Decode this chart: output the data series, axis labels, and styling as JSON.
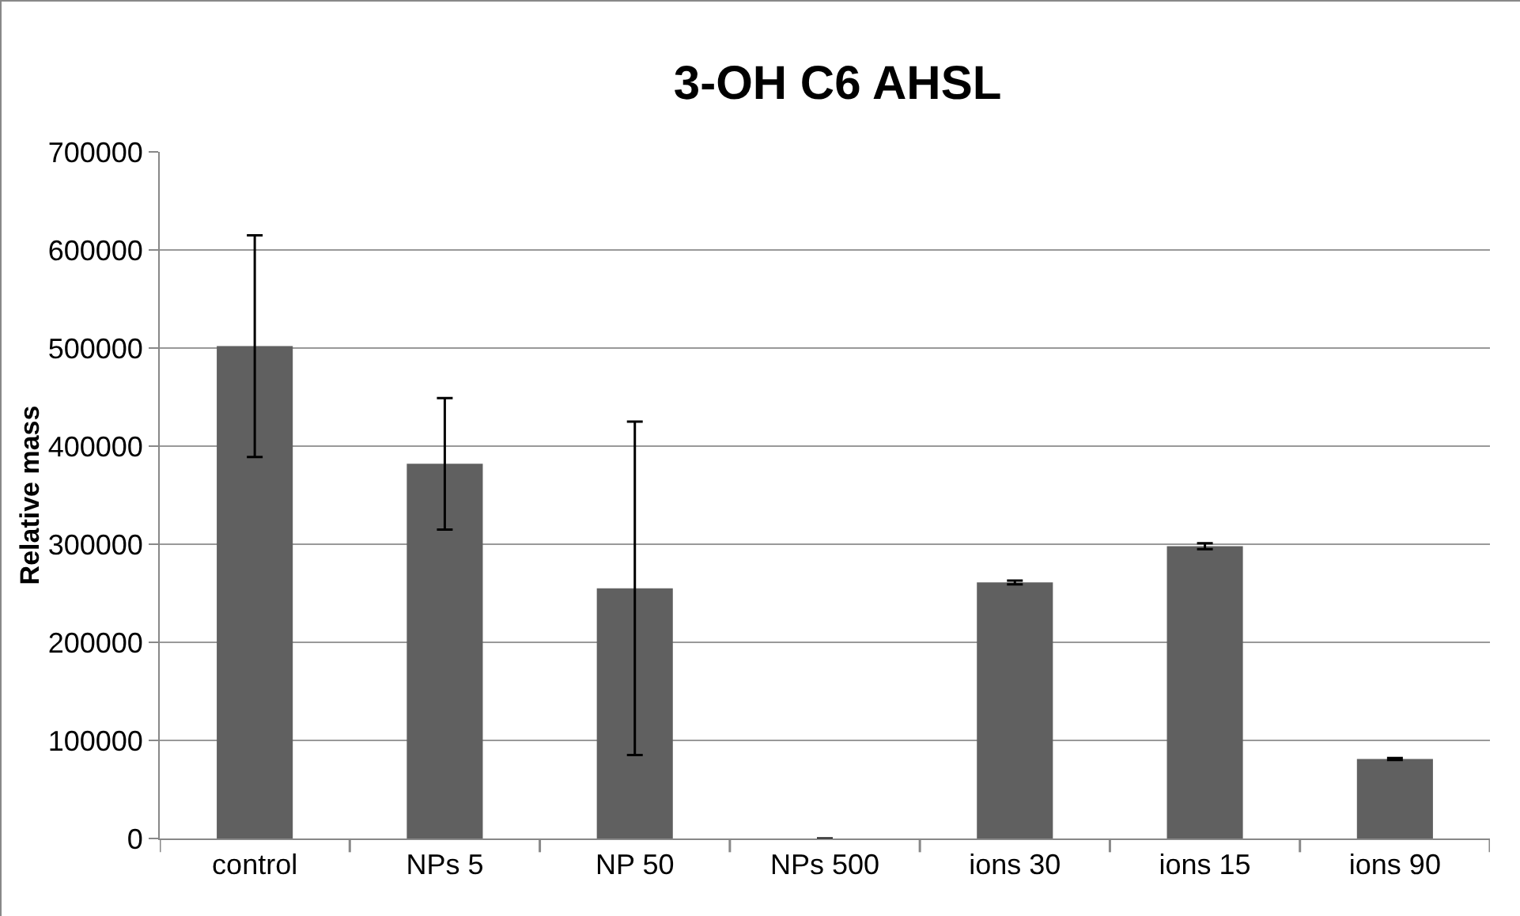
{
  "chart_data": {
    "type": "bar",
    "title": "3-OH C6 AHSL",
    "ylabel": "Relative mass",
    "categories": [
      "control",
      "NPs 5",
      "NP 50",
      "NPs 500",
      "ions 30",
      "ions 15",
      "ions 90"
    ],
    "values": [
      502000,
      382000,
      255000,
      0,
      261000,
      298000,
      81000
    ],
    "errors": [
      113000,
      67000,
      170000,
      null,
      2000,
      3000,
      1000
    ],
    "color": "#606060",
    "ylim": [
      0,
      700000
    ],
    "yticks": [
      0,
      100000,
      200000,
      300000,
      400000,
      500000,
      600000,
      700000
    ],
    "grid": "y",
    "legend": false
  }
}
